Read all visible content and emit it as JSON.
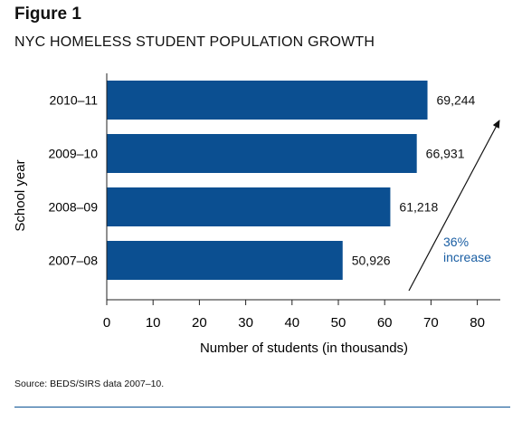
{
  "figure_label": "Figure 1",
  "title": "NYC HOMELESS STUDENT POPULATION GROWTH",
  "source": "Source: BEDS/SIRS data 2007–10.",
  "colors": {
    "bar": "#0b4f91",
    "accent_text": "#1a5ea3",
    "rule": "#0b5394",
    "axis": "#222222"
  },
  "chart_data": {
    "type": "bar",
    "orientation": "horizontal",
    "categories": [
      "2010–11",
      "2009–10",
      "2008–09",
      "2007–08"
    ],
    "values": [
      69.244,
      66.931,
      61.218,
      50.926
    ],
    "data_labels": [
      "69,244",
      "66,931",
      "61,218",
      "50,926"
    ],
    "xlabel": "Number of students (in thousands)",
    "ylabel": "School year",
    "xlim": [
      0,
      85
    ],
    "xticks": [
      0,
      10,
      20,
      30,
      40,
      50,
      60,
      70,
      80
    ],
    "grid": false,
    "annotation": {
      "line1": "36%",
      "line2": "increase",
      "arrow": "diagonal up-right"
    }
  }
}
